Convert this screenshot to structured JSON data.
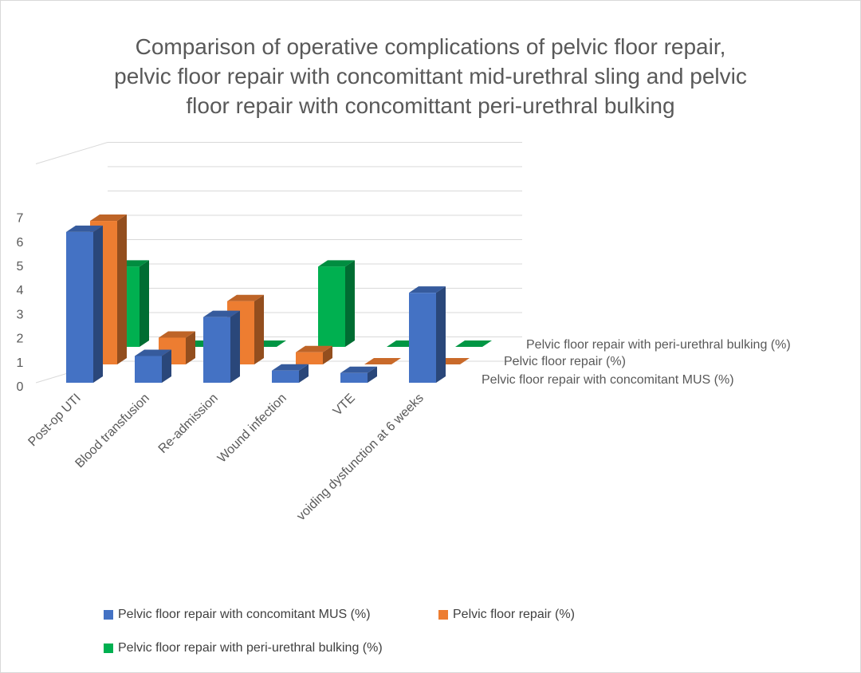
{
  "chart_data": {
    "type": "bar",
    "variant": "3d-column",
    "title_lines": [
      "Comparison of operative complications of pelvic floor repair,",
      "pelvic floor repair with concomittant mid-urethral sling and pelvic",
      "floor repair with concomittant peri-urethral bulking"
    ],
    "categories": [
      "Post-op UTI",
      "Blood transfusion",
      "Re-admission",
      "Wound infection",
      "VTE",
      "voiding dysfunction at 6 weeks"
    ],
    "series": [
      {
        "name": "Pelvic floor repair with concomitant MUS (%)",
        "color": "#4472c4",
        "values": [
          6.2,
          1.1,
          2.7,
          0.5,
          0.4,
          3.7
        ]
      },
      {
        "name": "Pelvic floor repair (%)",
        "color": "#ed7d31",
        "values": [
          5.9,
          1.1,
          2.6,
          0.5,
          0,
          0
        ]
      },
      {
        "name": "Pelvic floor repair with peri-urethral bulking (%)",
        "color": "#00b050",
        "values": [
          3.3,
          0,
          0,
          3.3,
          0,
          0
        ]
      }
    ],
    "y_ticks": [
      "0",
      "1",
      "2",
      "3",
      "4",
      "5",
      "6",
      "7"
    ],
    "ylim": [
      0,
      9
    ],
    "grid": true,
    "legend_position": "bottom"
  }
}
